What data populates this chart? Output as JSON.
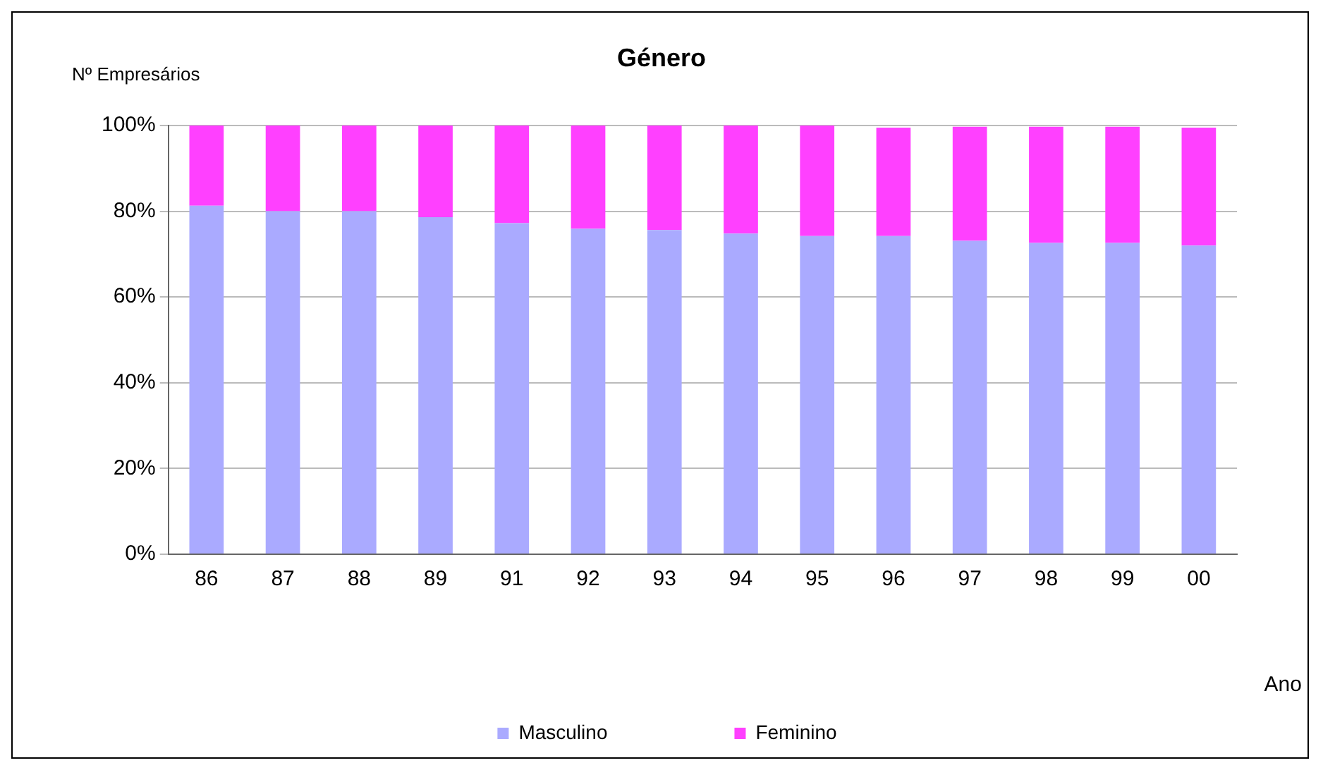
{
  "chart_data": {
    "type": "bar",
    "title": "Género",
    "ylabel": "Nº Empresários",
    "xlabel": "Ano",
    "stacked": true,
    "categories": [
      "86",
      "87",
      "88",
      "89",
      "91",
      "92",
      "93",
      "94",
      "95",
      "96",
      "97",
      "98",
      "99",
      "00"
    ],
    "series": [
      {
        "name": "Masculino",
        "color": "#aaaaff",
        "values": [
          81.3,
          80,
          80,
          78.6,
          77.2,
          75.9,
          75.6,
          74.8,
          74.2,
          74.2,
          73.1,
          72.6,
          72.6,
          72.0
        ]
      },
      {
        "name": "Feminino",
        "color": "#ff40ff",
        "values": [
          18.7,
          20,
          20,
          21.4,
          22.8,
          24.1,
          24.4,
          25.2,
          25.8,
          25.3,
          26.6,
          27.1,
          27.1,
          27.5
        ]
      }
    ],
    "ylim": [
      0,
      100
    ],
    "yticks": [
      {
        "value": 0,
        "label": "0%"
      },
      {
        "value": 20,
        "label": "20%"
      },
      {
        "value": 40,
        "label": "40%"
      },
      {
        "value": 60,
        "label": "60%"
      },
      {
        "value": 80,
        "label": "80%"
      },
      {
        "value": 100,
        "label": "100%"
      }
    ],
    "grid": "y",
    "legend": "bottom"
  }
}
